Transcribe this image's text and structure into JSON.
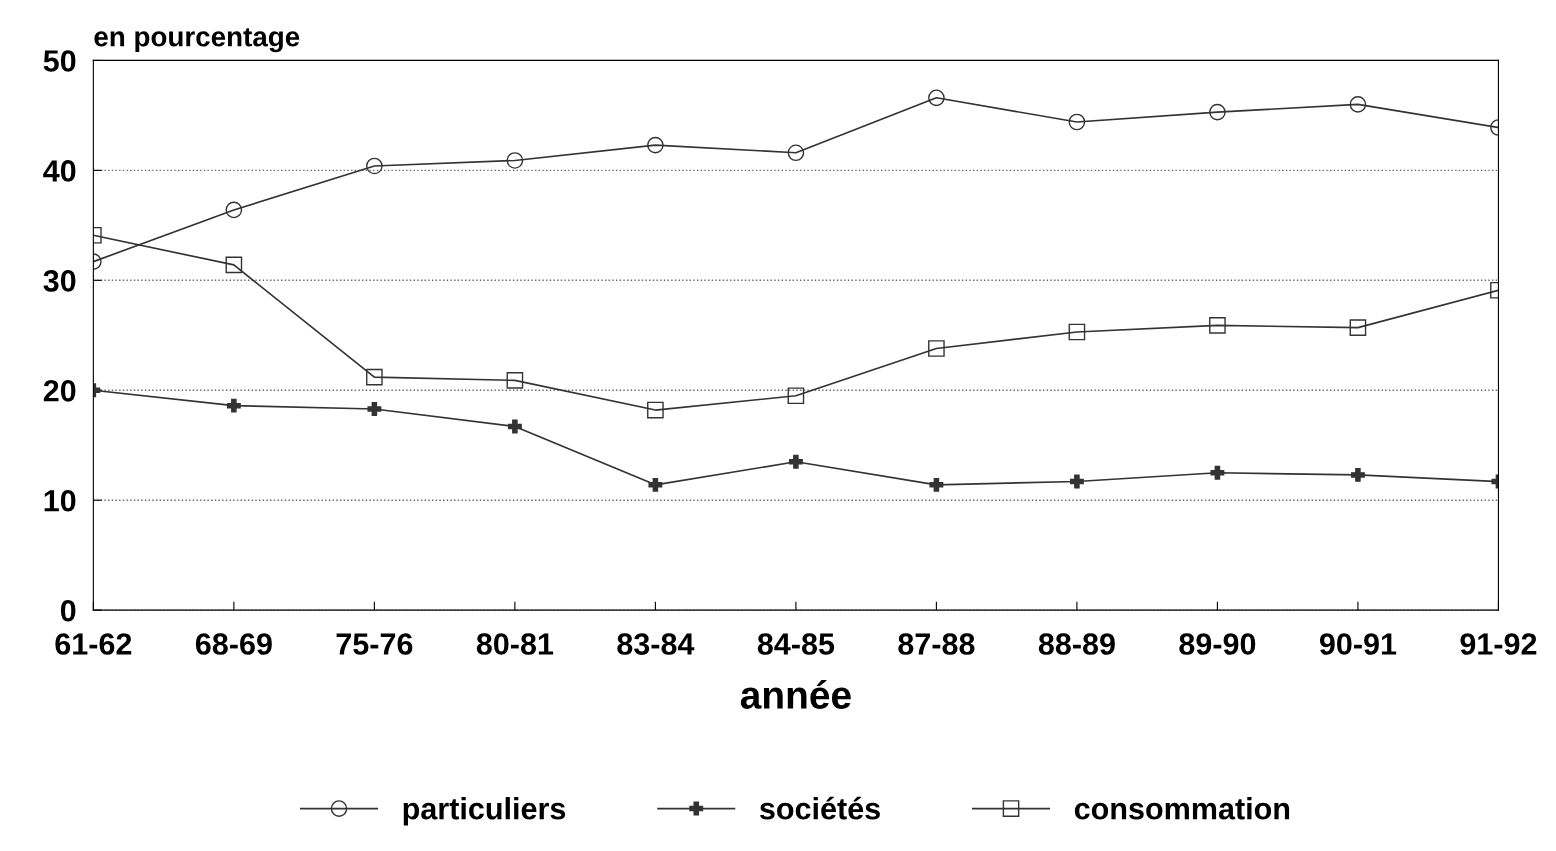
{
  "chart_data": {
    "type": "line",
    "ylabel": "en pourcentage",
    "xlabel": "année",
    "categories": [
      "61-62",
      "68-69",
      "75-76",
      "80-81",
      "83-84",
      "84-85",
      "87-88",
      "88-89",
      "89-90",
      "90-91",
      "91-92"
    ],
    "series": [
      {
        "name": "particuliers",
        "color": "#333333",
        "marker": "circle",
        "values": [
          31.7,
          36.4,
          40.4,
          40.9,
          42.3,
          41.6,
          46.6,
          44.4,
          45.3,
          46.0,
          43.9
        ]
      },
      {
        "name": "sociétés",
        "color": "#333333",
        "marker": "cross",
        "values": [
          20.0,
          18.6,
          18.3,
          16.7,
          11.4,
          13.5,
          11.4,
          11.7,
          12.5,
          12.3,
          11.7
        ]
      },
      {
        "name": "consommation",
        "color": "#333333",
        "marker": "square",
        "values": [
          34.1,
          31.4,
          21.2,
          20.9,
          18.2,
          19.5,
          23.8,
          25.3,
          25.9,
          25.7,
          29.1
        ]
      }
    ],
    "ylim": [
      0,
      50
    ],
    "yticks": [
      0,
      10,
      20,
      30,
      40,
      50
    ],
    "grid": "y",
    "legend": "bottom",
    "line_style": "solid"
  }
}
